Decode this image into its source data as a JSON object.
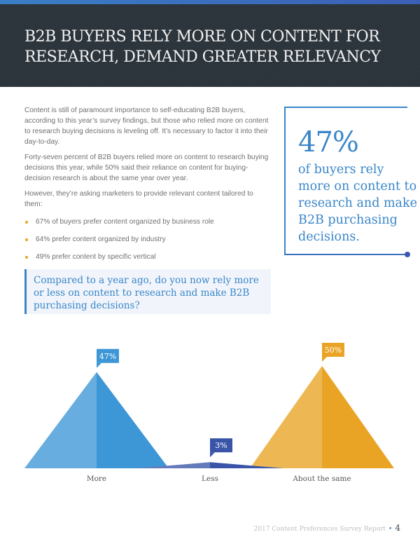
{
  "header": {
    "title_line1": "B2B BUYERS RELY MORE ON CONTENT FOR",
    "title_line2": "RESEARCH, DEMAND GREATER RELEVANCY"
  },
  "body": {
    "paragraphs": [
      "Content is still of paramount importance to self-educating B2B buyers, according to this year’s survey findings, but those who relied more on content to research buying decisions is leveling off. It’s necessary to factor it into their day-to-day.",
      "Forty-seven percent of B2B buyers relied more on content to research buying decisions this year, while 50% said their reliance on content for buying-decision research is about the same year over year.",
      "However, they’re asking marketers to provide relevant content tailored to them:"
    ],
    "bullets": [
      "67% of buyers prefer content organized by business role",
      "64% prefer content organized by industry",
      "49% prefer content by specific vertical"
    ]
  },
  "callout": {
    "stat": "47%",
    "text": "of buyers rely more on content to research and make B2B purchasing decisions."
  },
  "question": "Compared to a year ago, do you now rely more or less on content to research and make B2B purchasing decisions?",
  "chart_data": {
    "type": "bar",
    "style": "triangle",
    "categories": [
      "More",
      "Less",
      "About the same"
    ],
    "values": [
      47,
      3,
      50
    ],
    "data_labels": [
      "47%",
      "3%",
      "50%"
    ],
    "colors": [
      "#3d96d6",
      "#3a55a8",
      "#e9a425"
    ],
    "ylim": [
      0,
      50
    ]
  },
  "footer": {
    "report": "2017 Content Preferences Survey Report",
    "page": "4"
  }
}
